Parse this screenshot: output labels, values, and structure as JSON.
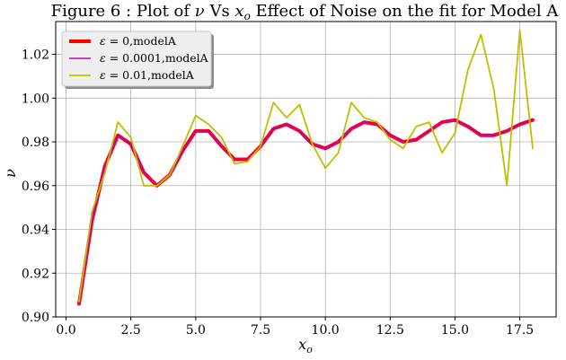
{
  "chart_data": {
    "type": "line",
    "title": "Figure 6 : Plot of ν Vs x_o Effect of Noise on the fit for Model A",
    "title_parts": {
      "prefix": "Figure 6 : Plot of ",
      "nu": "ν",
      "vs": " Vs ",
      "x": "x",
      "sub": "o",
      "suffix": " Effect of Noise on the fit for Model A"
    },
    "xlabel": "x_o",
    "xlabel_parts": {
      "x": "x",
      "sub": "o"
    },
    "ylabel": "ν",
    "xlim": [
      -0.4,
      18.9
    ],
    "ylim": [
      0.9,
      1.035
    ],
    "xticks": [
      0.0,
      2.5,
      5.0,
      7.5,
      10.0,
      12.5,
      15.0,
      17.5
    ],
    "xtick_labels": [
      "0.0",
      "2.5",
      "5.0",
      "7.5",
      "10.0",
      "12.5",
      "15.0",
      "17.5"
    ],
    "yticks": [
      0.9,
      0.92,
      0.94,
      0.96,
      0.98,
      1.0,
      1.02
    ],
    "ytick_labels": [
      "0.90",
      "0.92",
      "0.94",
      "0.96",
      "0.98",
      "1.00",
      "1.02"
    ],
    "grid": true,
    "legend_position": "top-left",
    "x": [
      0.5,
      1.0,
      1.5,
      2.0,
      2.5,
      3.0,
      3.5,
      4.0,
      4.5,
      5.0,
      5.5,
      6.0,
      6.5,
      7.0,
      7.5,
      8.0,
      8.5,
      9.0,
      9.5,
      10.0,
      10.5,
      11.0,
      11.5,
      12.0,
      12.5,
      13.0,
      13.5,
      14.0,
      14.5,
      15.0,
      15.5,
      16.0,
      16.5,
      17.0,
      17.5,
      18.0
    ],
    "series": [
      {
        "name": "ε = 0,modelA",
        "color": "#ff0000",
        "width": 4,
        "values": [
          0.906,
          0.944,
          0.969,
          0.983,
          0.979,
          0.966,
          0.96,
          0.965,
          0.976,
          0.985,
          0.985,
          0.978,
          0.972,
          0.972,
          0.978,
          0.986,
          0.988,
          0.985,
          0.979,
          0.977,
          0.98,
          0.986,
          0.989,
          0.988,
          0.983,
          0.98,
          0.981,
          0.985,
          0.989,
          0.99,
          0.987,
          0.983,
          0.983,
          0.985,
          0.988,
          0.99
        ]
      },
      {
        "name": "ε = 0.0001,modelA",
        "color": "#bf00bf",
        "width": 1.6,
        "values": [
          0.906,
          0.944,
          0.969,
          0.983,
          0.979,
          0.966,
          0.96,
          0.965,
          0.976,
          0.985,
          0.985,
          0.978,
          0.972,
          0.972,
          0.978,
          0.986,
          0.988,
          0.985,
          0.979,
          0.977,
          0.98,
          0.986,
          0.989,
          0.988,
          0.983,
          0.98,
          0.981,
          0.985,
          0.989,
          0.99,
          0.987,
          0.983,
          0.983,
          0.985,
          0.988,
          0.99
        ]
      },
      {
        "name": "ε = 0.01,modelA",
        "color": "#bfbf00",
        "width": 1.8,
        "values": [
          0.907,
          0.948,
          0.966,
          0.989,
          0.982,
          0.96,
          0.96,
          0.965,
          0.978,
          0.992,
          0.988,
          0.982,
          0.97,
          0.971,
          0.978,
          0.998,
          0.991,
          0.997,
          0.979,
          0.968,
          0.975,
          0.998,
          0.991,
          0.989,
          0.981,
          0.977,
          0.987,
          0.989,
          0.975,
          0.984,
          1.013,
          1.029,
          1.004,
          0.96,
          1.031,
          0.977
        ]
      }
    ],
    "legend_labels": [
      {
        "prefix": "ε",
        "rest": " = 0,modelA"
      },
      {
        "prefix": "ε",
        "rest": " = 0.0001,modelA"
      },
      {
        "prefix": "ε",
        "rest": " = 0.01,modelA"
      }
    ]
  }
}
